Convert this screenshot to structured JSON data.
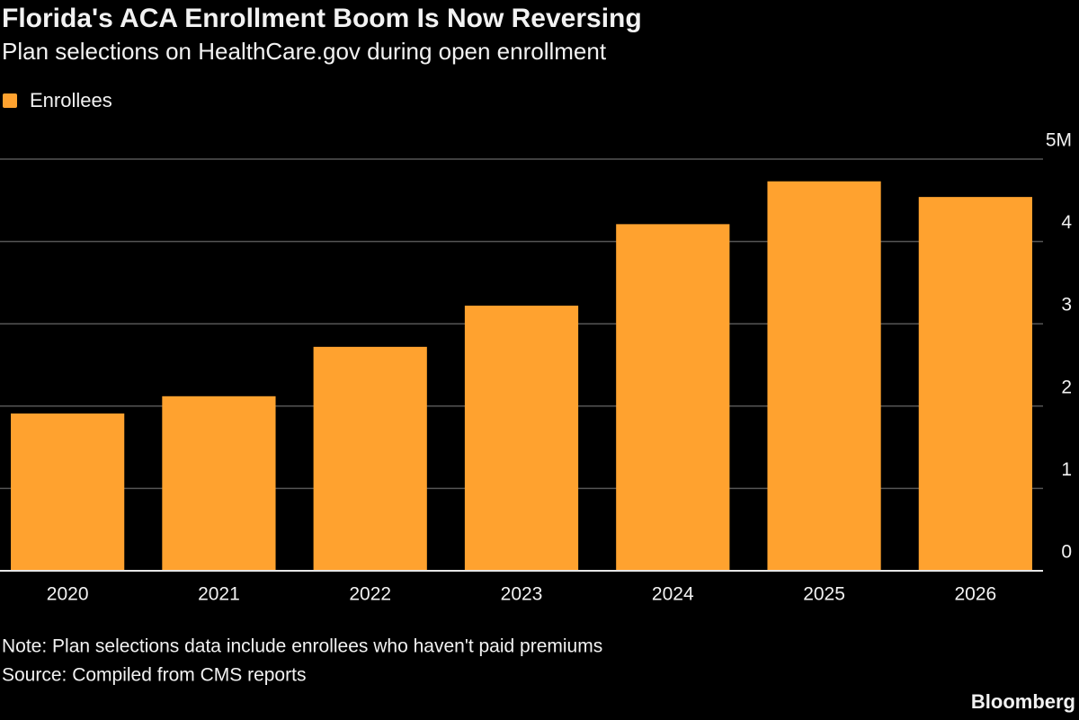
{
  "chart_data": {
    "type": "bar",
    "title": "Florida's ACA Enrollment Boom Is Now Reversing",
    "subtitle": "Plan selections on HealthCare.gov during open enrollment",
    "categories": [
      "2020",
      "2021",
      "2022",
      "2023",
      "2024",
      "2025",
      "2026"
    ],
    "series": [
      {
        "name": "Enrollees",
        "color": "#ffa22f",
        "values": [
          1.91,
          2.12,
          2.72,
          3.22,
          4.21,
          4.73,
          4.54
        ]
      }
    ],
    "ylim": [
      0,
      5
    ],
    "yticks": [
      0,
      1,
      2,
      3,
      4,
      {
        "value": 5,
        "label": "5M"
      }
    ],
    "grid": true,
    "legend": "top-left",
    "note": "Note: Plan selections data include enrollees who haven't paid premiums",
    "source": "Source: Compiled from CMS reports",
    "credit": "Bloomberg"
  }
}
